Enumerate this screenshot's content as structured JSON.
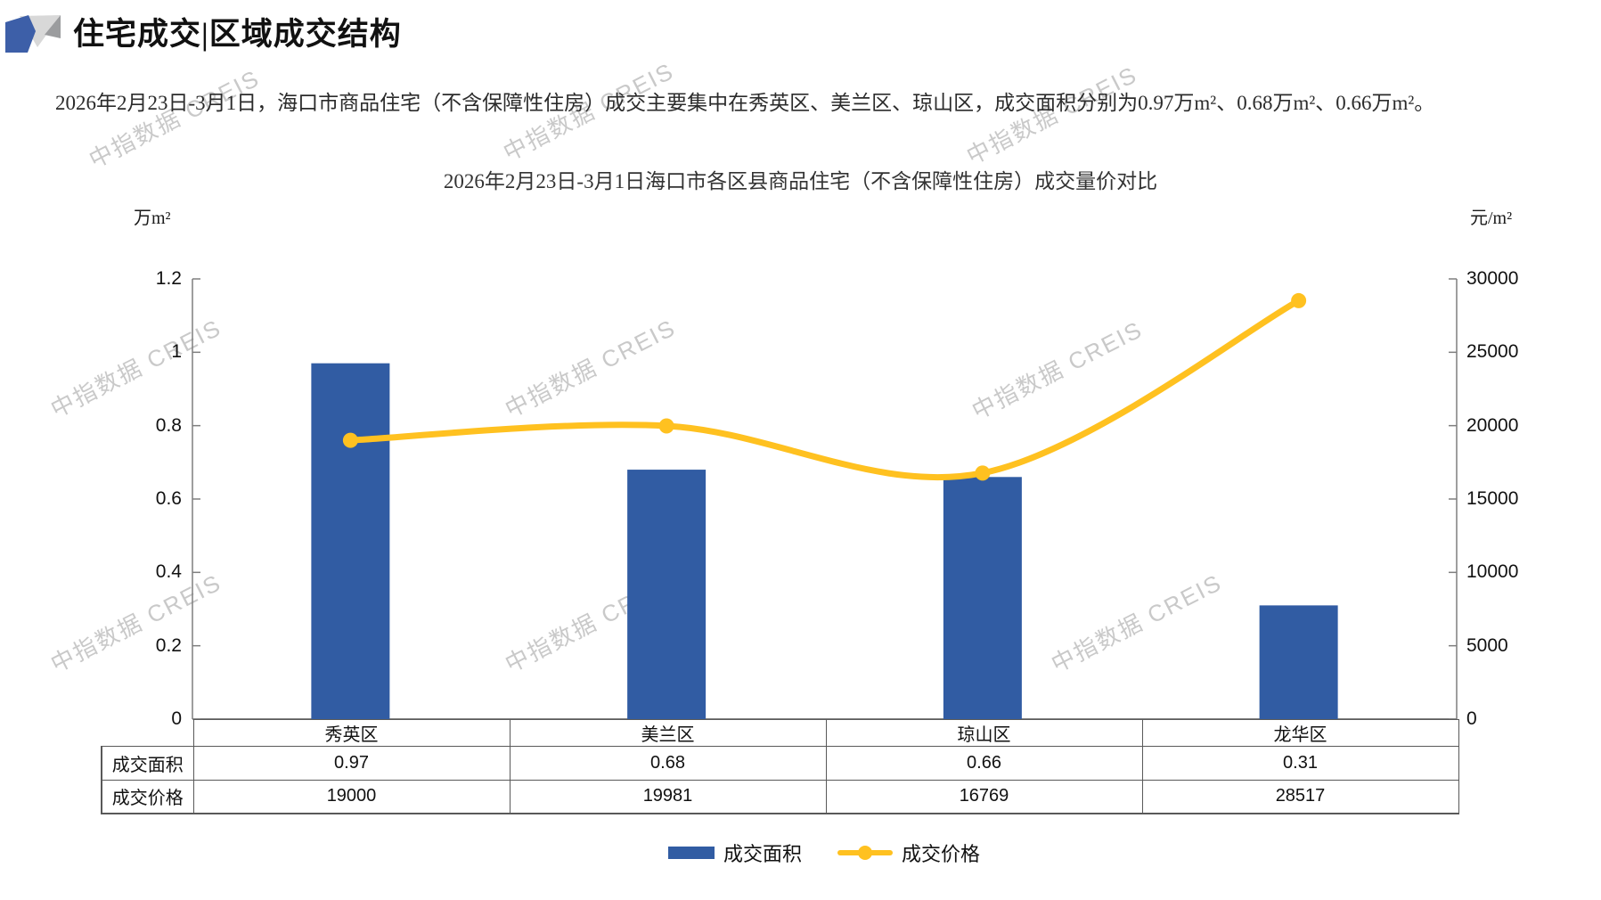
{
  "header": {
    "title": "住宅成交|区域成交结构"
  },
  "intro": {
    "text": "2026年2月23日-3月1日，海口市商品住宅（不含保障性住房）成交主要集中在秀英区、美兰区、琼山区，成交面积分别为0.97万m²、0.68万m²、0.66万m²。"
  },
  "watermark": {
    "text": "中指数据 CREIS"
  },
  "chart_data": {
    "type": "combo",
    "title": "2026年2月23日-3月1日海口市各区县商品住宅（不含保障性住房）成交量价对比",
    "categories": [
      "秀英区",
      "美兰区",
      "琼山区",
      "龙华区"
    ],
    "series": [
      {
        "name": "成交面积",
        "type": "bar",
        "axis": "left",
        "values": [
          0.97,
          0.68,
          0.66,
          0.31
        ],
        "color": "#315CA3"
      },
      {
        "name": "成交价格",
        "type": "line",
        "axis": "right",
        "values": [
          19000,
          19981,
          16769,
          28517
        ],
        "color": "#FFC120"
      }
    ],
    "left_axis": {
      "unit": "万m²",
      "min": 0,
      "max": 1.2,
      "ticks": [
        "1.2",
        "1",
        "0.8",
        "0.6",
        "0.4",
        "0.2",
        "0"
      ]
    },
    "right_axis": {
      "unit": "元/m²",
      "min": 0,
      "max": 30000,
      "ticks": [
        "30000",
        "25000",
        "20000",
        "15000",
        "10000",
        "5000",
        "0"
      ]
    },
    "grid": false,
    "legend_position": "bottom"
  },
  "table": {
    "row_headers": [
      "成交面积",
      "成交价格"
    ],
    "rows": [
      [
        "0.97",
        "0.68",
        "0.66",
        "0.31"
      ],
      [
        "19000",
        "19981",
        "16769",
        "28517"
      ]
    ]
  },
  "legend": {
    "items": [
      {
        "label": "成交面积",
        "type": "bar",
        "color": "#315CA3"
      },
      {
        "label": "成交价格",
        "type": "line",
        "color": "#FFC120"
      }
    ]
  }
}
